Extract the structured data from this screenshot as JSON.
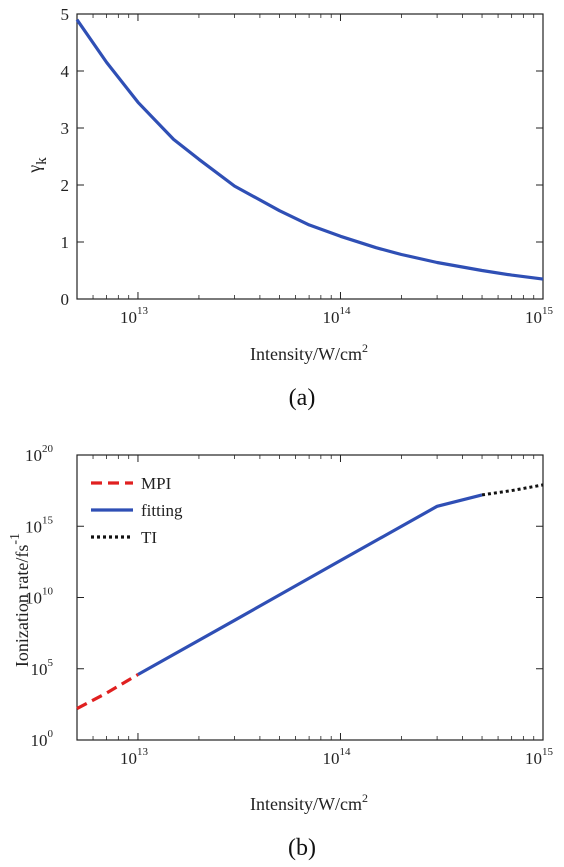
{
  "chart_data": [
    {
      "type": "line",
      "caption": "(a)",
      "xlabel": "Intensity/W/cm",
      "xlabel_sup": "2",
      "ylabel": "γ",
      "ylabel_sub": "k",
      "xscale": "log",
      "xlim": [
        5000000000000.0,
        1000000000000000.0
      ],
      "ylim": [
        0,
        5
      ],
      "xticks": [
        {
          "value": 10000000000000.0,
          "base": "10",
          "exp": "13"
        },
        {
          "value": 100000000000000.0,
          "base": "10",
          "exp": "14"
        },
        {
          "value": 1000000000000000.0,
          "base": "10",
          "exp": "15"
        }
      ],
      "yticks": [
        {
          "value": 0,
          "label": "0"
        },
        {
          "value": 1,
          "label": "1"
        },
        {
          "value": 2,
          "label": "2"
        },
        {
          "value": 3,
          "label": "3"
        },
        {
          "value": 4,
          "label": "4"
        },
        {
          "value": 5,
          "label": "5"
        }
      ],
      "grid": false,
      "series": [
        {
          "color": "#2f4fb5",
          "style": "solid",
          "x": [
            5000000000000.0,
            7000000000000.0,
            10000000000000.0,
            15000000000000.0,
            20000000000000.0,
            30000000000000.0,
            50000000000000.0,
            70000000000000.0,
            100000000000000.0,
            150000000000000.0,
            200000000000000.0,
            300000000000000.0,
            500000000000000.0,
            700000000000000.0,
            1000000000000000.0
          ],
          "y": [
            4.9,
            4.15,
            3.45,
            2.8,
            2.45,
            1.98,
            1.55,
            1.3,
            1.1,
            0.9,
            0.78,
            0.64,
            0.5,
            0.42,
            0.35
          ]
        }
      ]
    },
    {
      "type": "line",
      "caption": "(b)",
      "xlabel": "Intensity/W/cm",
      "xlabel_sup": "2",
      "ylabel": "Ionization rate/fs",
      "ylabel_sup": "-1",
      "xscale": "log",
      "yscale": "log",
      "xlim": [
        5000000000000.0,
        1000000000000000.0
      ],
      "ylim_exp": [
        0,
        20
      ],
      "xticks": [
        {
          "value": 10000000000000.0,
          "base": "10",
          "exp": "13"
        },
        {
          "value": 100000000000000.0,
          "base": "10",
          "exp": "14"
        },
        {
          "value": 1000000000000000.0,
          "base": "10",
          "exp": "15"
        }
      ],
      "yticks": [
        {
          "exp_value": 0,
          "base": "10",
          "exp": "0"
        },
        {
          "exp_value": 5,
          "base": "10",
          "exp": "5"
        },
        {
          "exp_value": 10,
          "base": "10",
          "exp": "10"
        },
        {
          "exp_value": 15,
          "base": "10",
          "exp": "15"
        },
        {
          "exp_value": 20,
          "base": "10",
          "exp": "20"
        }
      ],
      "grid": false,
      "legend_position": "top-left",
      "series": [
        {
          "name": "MPI",
          "color": "#e02020",
          "style": "dashed",
          "x": [
            5000000000000.0,
            7000000000000.0,
            10000000000000.0
          ],
          "y_exp": [
            2.2,
            3.3,
            4.6
          ]
        },
        {
          "name": "fitting",
          "color": "#2f4fb5",
          "style": "solid",
          "x": [
            10000000000000.0,
            30000000000000.0,
            100000000000000.0,
            300000000000000.0,
            500000000000000.0
          ],
          "y_exp": [
            4.6,
            8.4,
            12.6,
            16.4,
            17.2
          ]
        },
        {
          "name": "TI",
          "color": "#111111",
          "style": "dotted",
          "x": [
            500000000000000.0,
            700000000000000.0,
            1000000000000000.0
          ],
          "y_exp": [
            17.2,
            17.5,
            17.9
          ]
        }
      ]
    }
  ]
}
